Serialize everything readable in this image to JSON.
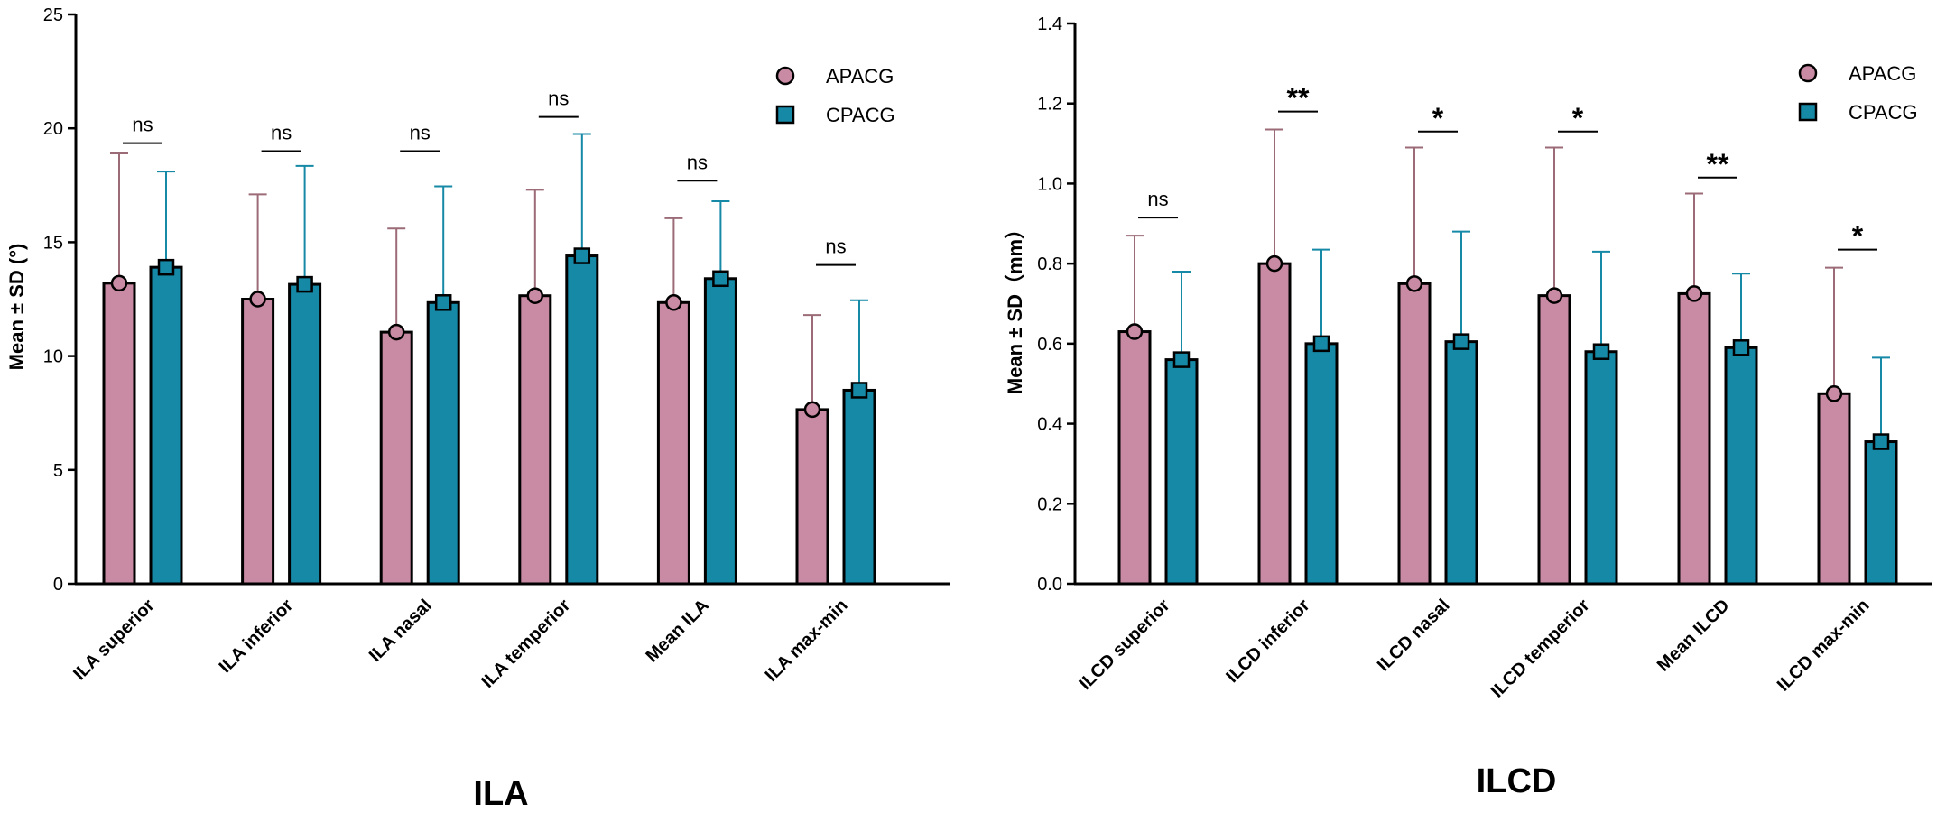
{
  "colors": {
    "APACG": "#c98aa3",
    "CPACG": "#1589a6",
    "axis": "#000000",
    "sig_line": "#000000"
  },
  "chart_data": [
    {
      "type": "bar",
      "panel_title": "ILA",
      "ylabel": "Mean ± SD (°)",
      "xlabel": "",
      "ylim": [
        0,
        25
      ],
      "yticks": [
        0,
        5,
        10,
        15,
        20,
        25
      ],
      "ytick_labels": [
        "0",
        "5",
        "10",
        "15",
        "20",
        "25"
      ],
      "grid": false,
      "legend_position": "top-right",
      "categories": [
        "ILA superior",
        "ILA inferior",
        "ILA nasal",
        "ILA temperior",
        "Mean ILA",
        "ILA max-min"
      ],
      "series": [
        {
          "name": "APACG",
          "marker": "circle",
          "values": [
            13.2,
            12.5,
            11.05,
            12.65,
            12.35,
            7.65
          ],
          "sd": [
            5.7,
            4.6,
            4.55,
            4.65,
            3.7,
            4.15
          ]
        },
        {
          "name": "CPACG",
          "marker": "square",
          "values": [
            13.9,
            13.15,
            12.35,
            14.4,
            13.4,
            8.5
          ],
          "sd": [
            4.2,
            5.2,
            5.1,
            5.35,
            3.4,
            3.95
          ]
        }
      ],
      "significance": [
        "ns",
        "ns",
        "ns",
        "ns",
        "ns",
        "ns"
      ],
      "significance_levels": [
        19.35,
        19.0,
        19.0,
        20.5,
        17.7,
        14.0
      ]
    },
    {
      "type": "bar",
      "panel_title": "ILCD",
      "ylabel": "Mean ± SD（mm）",
      "xlabel": "",
      "ylim": [
        0,
        1.4
      ],
      "yticks": [
        0,
        0.2,
        0.4,
        0.6,
        0.8,
        1.0,
        1.2,
        1.4
      ],
      "ytick_labels": [
        "0.0",
        "0.2",
        "0.4",
        "0.6",
        "0.8",
        "1.0",
        "1.2",
        "1.4"
      ],
      "grid": false,
      "legend_position": "top-right",
      "categories": [
        "ILCD superior",
        "ILCD inferior",
        "ILCD nasal",
        "ILCD temperior",
        "Mean ILCD",
        "ILCD max-min"
      ],
      "series": [
        {
          "name": "APACG",
          "marker": "circle",
          "values": [
            0.63,
            0.8,
            0.75,
            0.72,
            0.725,
            0.475
          ],
          "sd": [
            0.24,
            0.335,
            0.34,
            0.37,
            0.25,
            0.315
          ]
        },
        {
          "name": "CPACG",
          "marker": "square",
          "values": [
            0.56,
            0.6,
            0.605,
            0.58,
            0.59,
            0.355
          ],
          "sd": [
            0.22,
            0.235,
            0.275,
            0.25,
            0.185,
            0.21
          ]
        }
      ],
      "significance": [
        "ns",
        "**",
        "*",
        "*",
        "**",
        "*"
      ],
      "significance_levels": [
        0.915,
        1.18,
        1.13,
        1.13,
        1.015,
        0.835
      ]
    }
  ]
}
